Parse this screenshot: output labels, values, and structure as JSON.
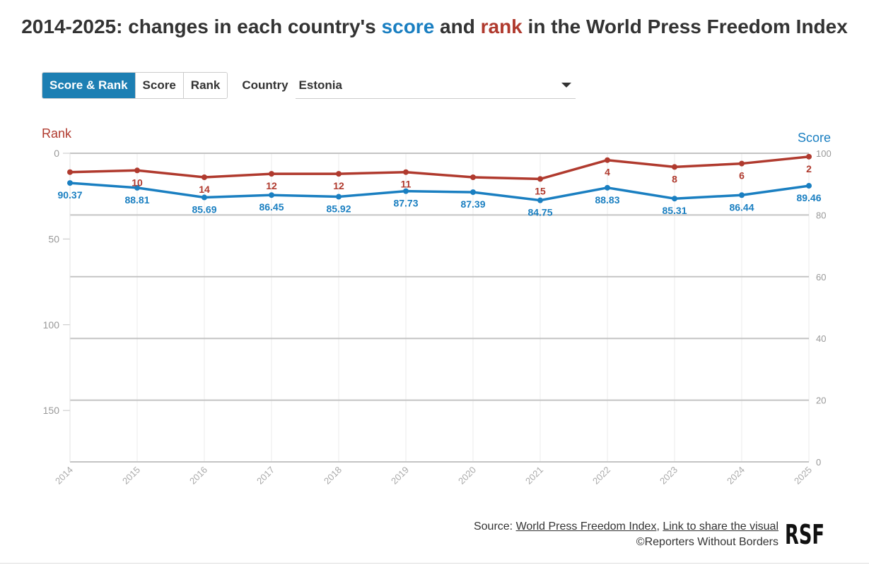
{
  "title": {
    "prefix": "2014-2025: changes in each country's ",
    "score_word": "score",
    "middle": " and ",
    "rank_word": "rank",
    "suffix": " in the World Press Freedom Index"
  },
  "controls": {
    "tabs": [
      {
        "label": "Score & Rank",
        "active": true
      },
      {
        "label": "Score",
        "active": false
      },
      {
        "label": "Rank",
        "active": false
      }
    ],
    "country_label": "Country",
    "country_selected": "Estonia"
  },
  "colors": {
    "score": "#1a7fc1",
    "rank": "#b03a2e",
    "active_tab": "#1d7fb3"
  },
  "chart_data": {
    "type": "line",
    "x": [
      "2014",
      "2015",
      "2016",
      "2017",
      "2018",
      "2019",
      "2020",
      "2021",
      "2022",
      "2023",
      "2024",
      "2025"
    ],
    "left_axis": {
      "label": "Rank",
      "ticks": [
        "0",
        "50",
        "100",
        "150"
      ],
      "range": [
        0,
        180
      ],
      "inverted": true
    },
    "right_axis": {
      "label": "Score",
      "ticks": [
        "0",
        "20",
        "40",
        "60",
        "80",
        "100"
      ],
      "range": [
        0,
        100
      ]
    },
    "grid": true,
    "series": [
      {
        "name": "Rank",
        "axis": "left",
        "values": [
          11,
          10,
          14,
          12,
          12,
          11,
          14,
          15,
          4,
          8,
          6,
          2
        ],
        "labels": [
          "",
          "10",
          "14",
          "12",
          "12",
          "11",
          "",
          "15",
          "4",
          "8",
          "6",
          "2"
        ]
      },
      {
        "name": "Score",
        "axis": "right",
        "values": [
          90.37,
          88.81,
          85.69,
          86.45,
          85.92,
          87.73,
          87.39,
          84.75,
          88.83,
          85.31,
          86.44,
          89.46
        ],
        "labels": [
          "90.37",
          "88.81",
          "85.69",
          "86.45",
          "85.92",
          "87.73",
          "87.39",
          "84.75",
          "88.83",
          "85.31",
          "86.44",
          "89.46"
        ]
      }
    ]
  },
  "footer": {
    "source_prefix": "Source: ",
    "source_link": "World Press Freedom Index",
    "separator": ", ",
    "share_link": "Link to share the visual",
    "copyright": "©Reporters Without Borders"
  },
  "logo": {
    "text": "RSF"
  }
}
